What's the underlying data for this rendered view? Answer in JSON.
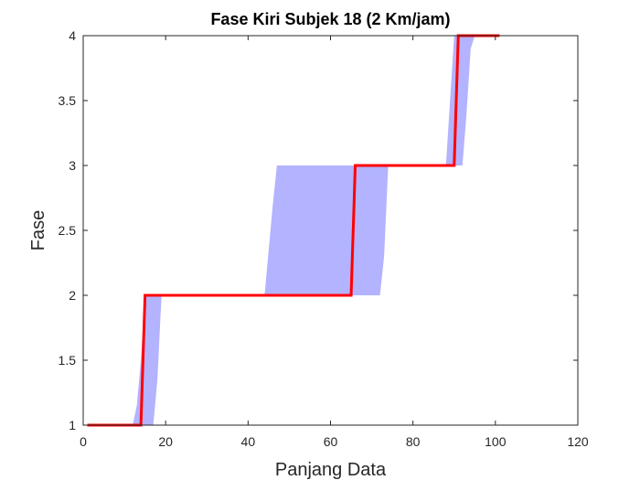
{
  "chart_data": {
    "type": "line",
    "title": "Fase Kiri Subjek 18 (2 Km/jam)",
    "xlabel": "Panjang Data",
    "ylabel": "Fase",
    "xlim": [
      0,
      120
    ],
    "ylim": [
      1,
      4
    ],
    "xticks": [
      "0",
      "20",
      "40",
      "60",
      "80",
      "100",
      "120"
    ],
    "yticks": [
      "1",
      "1.5",
      "2",
      "2.5",
      "3",
      "3.5",
      "4"
    ],
    "grid": false,
    "legend": "none",
    "series": [
      {
        "kind": "band",
        "color": "#b3b3ff",
        "lower": [
          [
            12,
            1
          ],
          [
            17,
            1
          ],
          [
            18,
            1.35
          ],
          [
            19,
            2
          ],
          [
            44,
            2
          ],
          [
            45,
            2.05
          ],
          [
            47,
            3
          ],
          [
            92,
            3
          ],
          [
            93,
            3.4
          ],
          [
            94,
            3.9
          ],
          [
            95,
            4
          ],
          [
            101,
            4
          ]
        ],
        "upper": [
          [
            12,
            1
          ],
          [
            13,
            1.15
          ],
          [
            14,
            1.5
          ],
          [
            15,
            2
          ],
          [
            44,
            2
          ],
          [
            46,
            2.7
          ],
          [
            47,
            3
          ],
          [
            88,
            3
          ],
          [
            89,
            3.5
          ],
          [
            90,
            4
          ],
          [
            101,
            4
          ]
        ],
        "lower_mid": [
          [
            19,
            2
          ],
          [
            72,
            2
          ],
          [
            73,
            2.3
          ],
          [
            74,
            3
          ],
          [
            92,
            3
          ]
        ]
      },
      {
        "kind": "line",
        "color": "#ff0000",
        "points": [
          [
            1,
            1
          ],
          [
            14,
            1
          ],
          [
            15,
            2
          ],
          [
            65,
            2
          ],
          [
            66,
            3
          ],
          [
            90,
            3
          ],
          [
            91,
            4
          ],
          [
            101,
            4
          ]
        ]
      }
    ]
  }
}
